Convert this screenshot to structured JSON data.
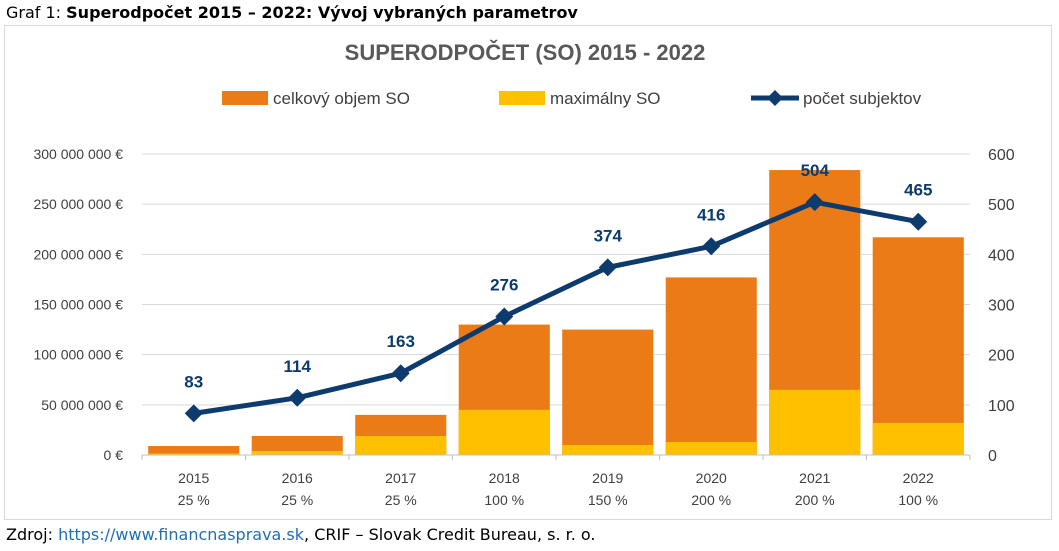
{
  "caption": {
    "prefix": "Graf 1: ",
    "title": "Superodpočet 2015 – 2022: Vývoj vybraných parametrov"
  },
  "source": {
    "prefix": "Zdroj: ",
    "link": "https://www.financnasprava.sk",
    "suffix": ", CRIF – Slovak Credit Bureau, s. r. o."
  },
  "colors": {
    "total": "#ea7b17",
    "max": "#ffc000",
    "line": "#0e3b6e",
    "grid": "#d9d9d9",
    "title": "#595959",
    "axis_text": "#404040"
  },
  "chart_data": {
    "type": "bar",
    "title": "SUPERODPOČET (SO) 2015 - 2022",
    "categories": [
      "2015",
      "2016",
      "2017",
      "2018",
      "2019",
      "2020",
      "2021",
      "2022"
    ],
    "category_sublabels": [
      "25 %",
      "25 %",
      "25 %",
      "100 %",
      "150 %",
      "200 %",
      "200 %",
      "100 %"
    ],
    "series": [
      {
        "name": "celkový objem SO",
        "kind": "bar",
        "axis": "left",
        "values": [
          9000000,
          19000000,
          40000000,
          130000000,
          125000000,
          177000000,
          284000000,
          217000000
        ]
      },
      {
        "name": "maximálny SO",
        "kind": "bar",
        "axis": "left",
        "values": [
          1500000,
          4000000,
          19000000,
          45000000,
          10000000,
          13000000,
          65000000,
          32000000
        ]
      },
      {
        "name": "počet subjektov",
        "kind": "line",
        "axis": "right",
        "values": [
          83,
          114,
          163,
          276,
          374,
          416,
          504,
          465
        ]
      }
    ],
    "y_left": {
      "min": 0,
      "max": 300000000,
      "ticks": [
        0,
        50000000,
        100000000,
        150000000,
        200000000,
        250000000,
        300000000
      ],
      "tick_labels": [
        "0 €",
        "50 000 000 €",
        "100 000 000 €",
        "150 000 000 €",
        "200 000 000 €",
        "250 000 000 €",
        "300 000 000 €"
      ]
    },
    "y_right": {
      "min": 0,
      "max": 600,
      "ticks": [
        0,
        100,
        200,
        300,
        400,
        500,
        600
      ],
      "tick_labels": [
        "0",
        "100",
        "200",
        "300",
        "400",
        "500",
        "600"
      ]
    },
    "legend_position": "top",
    "grid": true
  }
}
